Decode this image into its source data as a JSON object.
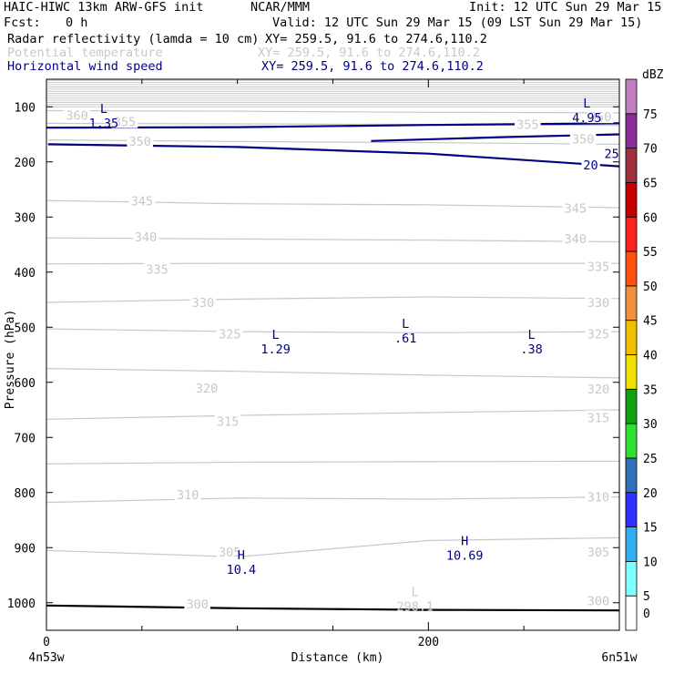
{
  "header": {
    "model": "HAIC-HIWC 13km ARW-GFS init",
    "org": "NCAR/MMM",
    "init": "Init: 12 UTC Sun 29 Mar 15",
    "fcst_label": "Fcst:",
    "fcst_value": "0 h",
    "valid": "Valid: 12 UTC Sun 29 Mar 15 (09 LST Sun 29 Mar 15)",
    "fields": [
      {
        "name": "Radar reflectivity (lamda = 10 cm)",
        "xy": "XY= 259.5, 91.6 to 274.6,110.2",
        "color": "#000000"
      },
      {
        "name": "Potential temperature",
        "xy": "XY= 259.5, 91.6 to 274.6,110.2",
        "color": "#c8c8c8"
      },
      {
        "name": "Horizontal wind speed",
        "xy": "XY= 259.5, 91.6 to 274.6,110.2",
        "color": "#000080"
      }
    ]
  },
  "chart_data": {
    "type": "contour-cross-section",
    "xlabel": "Distance (km)",
    "ylabel": "Pressure (hPa)",
    "xlim": [
      0,
      300
    ],
    "ylim": [
      1050,
      50
    ],
    "x_ticks": [
      0,
      200
    ],
    "x_minor_step": 50,
    "y_ticks": [
      100,
      200,
      300,
      400,
      500,
      600,
      700,
      800,
      900,
      1000
    ],
    "x_start_label": "4n53w",
    "x_end_label": "6n51w",
    "colorbar": {
      "unit": "dBZ",
      "levels": [
        0,
        5,
        10,
        15,
        20,
        25,
        30,
        35,
        40,
        45,
        50,
        55,
        60,
        65,
        70,
        75
      ],
      "colors": [
        "#ffffff",
        "#80ffff",
        "#30b0f0",
        "#3030ff",
        "#3070b8",
        "#30e030",
        "#10a010",
        "#f0e000",
        "#f0c000",
        "#f09040",
        "#ff5010",
        "#ff2020",
        "#c80000",
        "#a03040",
        "#8c2c98",
        "#c080c0"
      ]
    },
    "theta_contours": [
      {
        "label": "360",
        "points": [
          [
            0,
            107
          ],
          [
            100,
            108
          ],
          [
            200,
            110
          ],
          [
            300,
            111
          ]
        ]
      },
      {
        "label": "355",
        "points": [
          [
            0,
            130
          ],
          [
            100,
            131
          ],
          [
            200,
            132
          ],
          [
            300,
            134
          ]
        ]
      },
      {
        "label": "350",
        "points": [
          [
            0,
            160
          ],
          [
            100,
            163
          ],
          [
            200,
            165
          ],
          [
            300,
            168
          ]
        ]
      },
      {
        "label": "345",
        "points": [
          [
            0,
            270
          ],
          [
            100,
            276
          ],
          [
            200,
            278
          ],
          [
            300,
            283
          ]
        ]
      },
      {
        "label": "340",
        "points": [
          [
            0,
            338
          ],
          [
            100,
            340
          ],
          [
            200,
            342
          ],
          [
            300,
            345
          ]
        ]
      },
      {
        "label": "335",
        "points": [
          [
            0,
            385
          ],
          [
            100,
            384
          ],
          [
            200,
            384
          ],
          [
            300,
            384
          ]
        ]
      },
      {
        "label": "330",
        "points": [
          [
            0,
            455
          ],
          [
            100,
            449
          ],
          [
            200,
            445
          ],
          [
            300,
            448
          ]
        ]
      },
      {
        "label": "325",
        "points": [
          [
            0,
            503
          ],
          [
            100,
            508
          ],
          [
            200,
            510
          ],
          [
            300,
            508
          ]
        ]
      },
      {
        "label": "320",
        "points": [
          [
            0,
            575
          ],
          [
            100,
            580
          ],
          [
            200,
            587
          ],
          [
            300,
            592
          ]
        ]
      },
      {
        "label": "315",
        "points": [
          [
            0,
            667
          ],
          [
            100,
            660
          ],
          [
            200,
            655
          ],
          [
            300,
            650
          ]
        ]
      },
      {
        "label": "310",
        "points": [
          [
            0,
            748
          ],
          [
            100,
            745
          ],
          [
            200,
            744
          ],
          [
            300,
            743
          ]
        ]
      },
      {
        "label": "305",
        "points": [
          [
            0,
            818
          ],
          [
            100,
            810
          ],
          [
            200,
            812
          ],
          [
            300,
            808
          ]
        ]
      },
      {
        "label": "300",
        "points": [
          [
            0,
            905
          ],
          [
            100,
            917
          ],
          [
            200,
            887
          ],
          [
            300,
            882
          ]
        ]
      }
    ],
    "theta_label_positions": [
      {
        "label": "360",
        "at": [
          [
            16,
            115
          ],
          [
            290,
            118
          ]
        ]
      },
      {
        "label": "355",
        "at": [
          [
            41,
            127
          ],
          [
            252,
            132
          ]
        ]
      },
      {
        "label": "350",
        "at": [
          [
            49,
            162
          ],
          [
            281,
            158
          ]
        ]
      },
      {
        "label": "345",
        "at": [
          [
            50,
            271
          ],
          [
            277,
            284
          ]
        ]
      },
      {
        "label": "340",
        "at": [
          [
            52,
            336
          ],
          [
            277,
            339
          ]
        ]
      },
      {
        "label": "335",
        "at": [
          [
            58,
            395
          ],
          [
            289,
            390
          ]
        ]
      },
      {
        "label": "330",
        "at": [
          [
            82,
            455
          ],
          [
            289,
            455
          ]
        ]
      },
      {
        "label": "325",
        "at": [
          [
            96,
            512
          ],
          [
            289,
            512
          ]
        ]
      },
      {
        "label": "320",
        "at": [
          [
            84,
            610
          ],
          [
            289,
            612
          ]
        ]
      },
      {
        "label": "315",
        "at": [
          [
            95,
            671
          ],
          [
            289,
            664
          ]
        ]
      },
      {
        "label": "310",
        "at": [
          [
            74,
            804
          ],
          [
            289,
            808
          ]
        ]
      },
      {
        "label": "305",
        "at": [
          [
            96,
            908
          ],
          [
            289,
            908
          ]
        ]
      },
      {
        "label": "300",
        "at": [
          [
            79,
            1002
          ],
          [
            289,
            996
          ]
        ]
      }
    ],
    "wind_contours": [
      {
        "label": "20",
        "points": [
          [
            0,
            138
          ],
          [
            100,
            137
          ],
          [
            200,
            133
          ],
          [
            300,
            130
          ]
        ]
      },
      {
        "label": "20",
        "points": [
          [
            0,
            168
          ],
          [
            100,
            173
          ],
          [
            200,
            185
          ],
          [
            300,
            208
          ]
        ]
      },
      {
        "label": "25",
        "points": [
          [
            170,
            162
          ],
          [
            240,
            155
          ],
          [
            300,
            150
          ]
        ]
      }
    ],
    "wind_label_positions": [
      {
        "label": "20",
        "at": [
          [
            -4,
            168
          ],
          [
            285,
            205
          ]
        ]
      },
      {
        "label": "25",
        "at": [
          [
            296,
            185
          ]
        ]
      }
    ],
    "reflectivity_contours": [
      {
        "label": "",
        "points": [
          [
            0,
            1005
          ],
          [
            100,
            1010
          ],
          [
            200,
            1013
          ],
          [
            300,
            1014
          ]
        ]
      }
    ],
    "extrema": [
      {
        "kind": "L",
        "value": "1.35",
        "x": 30,
        "p": 118,
        "field": "wind"
      },
      {
        "kind": "L",
        "value": "4.95",
        "x": 283,
        "p": 108,
        "field": "wind"
      },
      {
        "kind": "L",
        "value": "1.29",
        "x": 120,
        "p": 528,
        "field": "wind"
      },
      {
        "kind": "L",
        "value": ".61",
        "x": 188,
        "p": 508,
        "field": "wind"
      },
      {
        "kind": "L",
        "value": ".38",
        "x": 254,
        "p": 528,
        "field": "wind"
      },
      {
        "kind": "H",
        "value": "10.4",
        "x": 102,
        "p": 928,
        "field": "wind"
      },
      {
        "kind": "H",
        "value": "10.69",
        "x": 219,
        "p": 902,
        "field": "wind"
      },
      {
        "kind": "L",
        "value": "298.1",
        "x": 193,
        "p": 995,
        "field": "theta"
      }
    ]
  }
}
